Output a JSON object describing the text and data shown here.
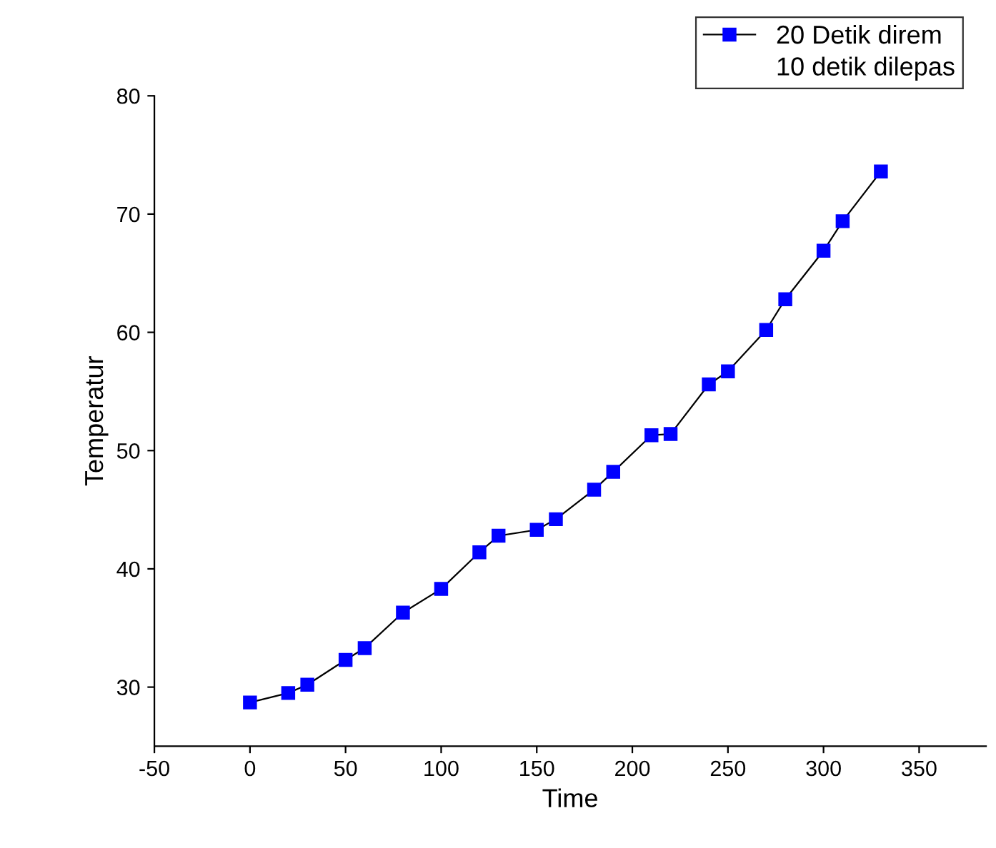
{
  "chart_data": {
    "type": "line",
    "xlabel": "Time",
    "ylabel": "Temperatur",
    "x": [
      0,
      20,
      30,
      50,
      60,
      80,
      100,
      120,
      130,
      150,
      160,
      180,
      190,
      210,
      220,
      240,
      250,
      270,
      280,
      300,
      310,
      330
    ],
    "series": [
      {
        "name": "20 Detik direm",
        "color": "#0000ff",
        "values": [
          28.7,
          29.5,
          30.2,
          32.3,
          33.3,
          36.3,
          38.3,
          41.4,
          42.8,
          43.3,
          44.2,
          46.7,
          48.2,
          51.3,
          51.4,
          55.6,
          56.7,
          60.2,
          62.8,
          66.9,
          69.4,
          73.6
        ]
      }
    ],
    "annotations": [
      "10 detik dilepas"
    ],
    "xlim": [
      -50,
      385
    ],
    "xticks": [
      -50,
      0,
      50,
      100,
      150,
      200,
      250,
      300,
      350
    ],
    "ylim": [
      25,
      80
    ],
    "yticks": [
      30,
      40,
      50,
      60,
      70,
      80
    ],
    "marker": "square",
    "line_style": "solid",
    "grid": false,
    "legend": "top right"
  }
}
